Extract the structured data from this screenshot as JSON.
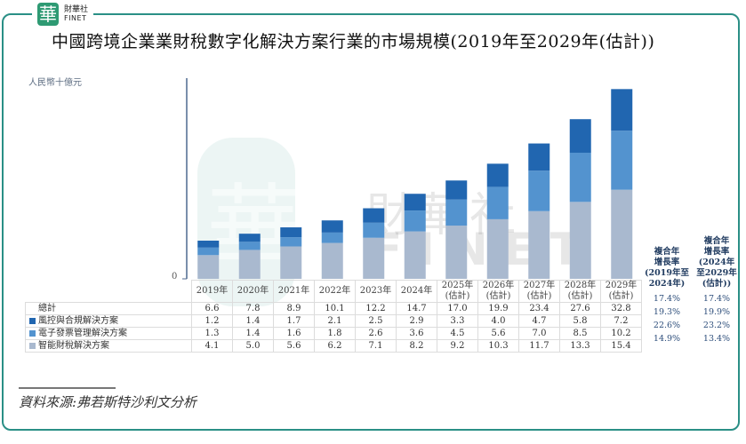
{
  "logo": {
    "glyph": "華",
    "cn": "財華社",
    "en": "FINET"
  },
  "title": "中國跨境企業業財稅數字化解決方案行業的市場規模(2019年至2029年(估計))",
  "source": "資料來源:弗若斯特沙利文分析",
  "watermark": {
    "cn": "財華社",
    "en": "FINET",
    "glyph": "華"
  },
  "colors": {
    "frame": "#2a8f86",
    "risk": "#2166b0",
    "einvoice": "#5393cf",
    "smart": "#a9b9cf"
  },
  "chart_data": {
    "type": "bar",
    "stacked": true,
    "title": "中國跨境企業業財稅數字化解決方案行業的市場規模(2019年至2029年(估計))",
    "ylabel": "人民幣十億元",
    "y_zero_label": "0",
    "ylim": [
      0,
      35
    ],
    "grid": false,
    "categories": [
      "2019年",
      "2020年",
      "2021年",
      "2022年",
      "2023年",
      "2024年",
      "2025年(估計)",
      "2026年(估計)",
      "2027年(估計)",
      "2028年(估計)",
      "2029年(估計)"
    ],
    "category_lines": [
      [
        "2019年"
      ],
      [
        "2020年"
      ],
      [
        "2021年"
      ],
      [
        "2022年"
      ],
      [
        "2023年"
      ],
      [
        "2024年"
      ],
      [
        "2025年",
        "(估計)"
      ],
      [
        "2026年",
        "(估計)"
      ],
      [
        "2027年",
        "(估計)"
      ],
      [
        "2028年",
        "(估計)"
      ],
      [
        "2029年",
        "(估計)"
      ]
    ],
    "total": {
      "name": "總計",
      "values": [
        "6.6",
        "7.8",
        "8.9",
        "10.1",
        "12.2",
        "14.7",
        "17.0",
        "19.9",
        "23.4",
        "27.6",
        "32.8"
      ]
    },
    "series": [
      {
        "name": "風控與合規解決方案",
        "key": "risk",
        "values": [
          1.2,
          1.4,
          1.7,
          2.1,
          2.5,
          2.9,
          3.3,
          4.0,
          4.7,
          5.8,
          7.2
        ],
        "labels": [
          "1.2",
          "1.4",
          "1.7",
          "2.1",
          "2.5",
          "2.9",
          "3.3",
          "4.0",
          "4.7",
          "5.8",
          "7.2"
        ]
      },
      {
        "name": "電子發票管理解決方案",
        "key": "einvoice",
        "values": [
          1.3,
          1.4,
          1.6,
          1.8,
          2.6,
          3.6,
          4.5,
          5.6,
          7.0,
          8.5,
          10.2
        ],
        "labels": [
          "1.3",
          "1.4",
          "1.6",
          "1.8",
          "2.6",
          "3.6",
          "4.5",
          "5.6",
          "7.0",
          "8.5",
          "10.2"
        ]
      },
      {
        "name": "智能財稅解決方案",
        "key": "smart",
        "values": [
          4.1,
          5.0,
          5.6,
          6.2,
          7.1,
          8.2,
          9.2,
          10.3,
          11.7,
          13.3,
          15.4
        ],
        "labels": [
          "4.1",
          "5.0",
          "5.6",
          "6.2",
          "7.1",
          "8.2",
          "9.2",
          "10.3",
          "11.7",
          "13.3",
          "15.4"
        ]
      }
    ],
    "cagr": [
      {
        "header": [
          "複合年",
          "增長率",
          "(2019年至",
          "2024年)"
        ],
        "values": [
          "17.4%",
          "19.3%",
          "22.6%",
          "14.9%"
        ]
      },
      {
        "header": [
          "複合年",
          "增長率",
          "(2024年",
          "至2029年",
          "(估計))"
        ],
        "values": [
          "17.4%",
          "19.9%",
          "23.2%",
          "13.4%"
        ]
      }
    ]
  }
}
